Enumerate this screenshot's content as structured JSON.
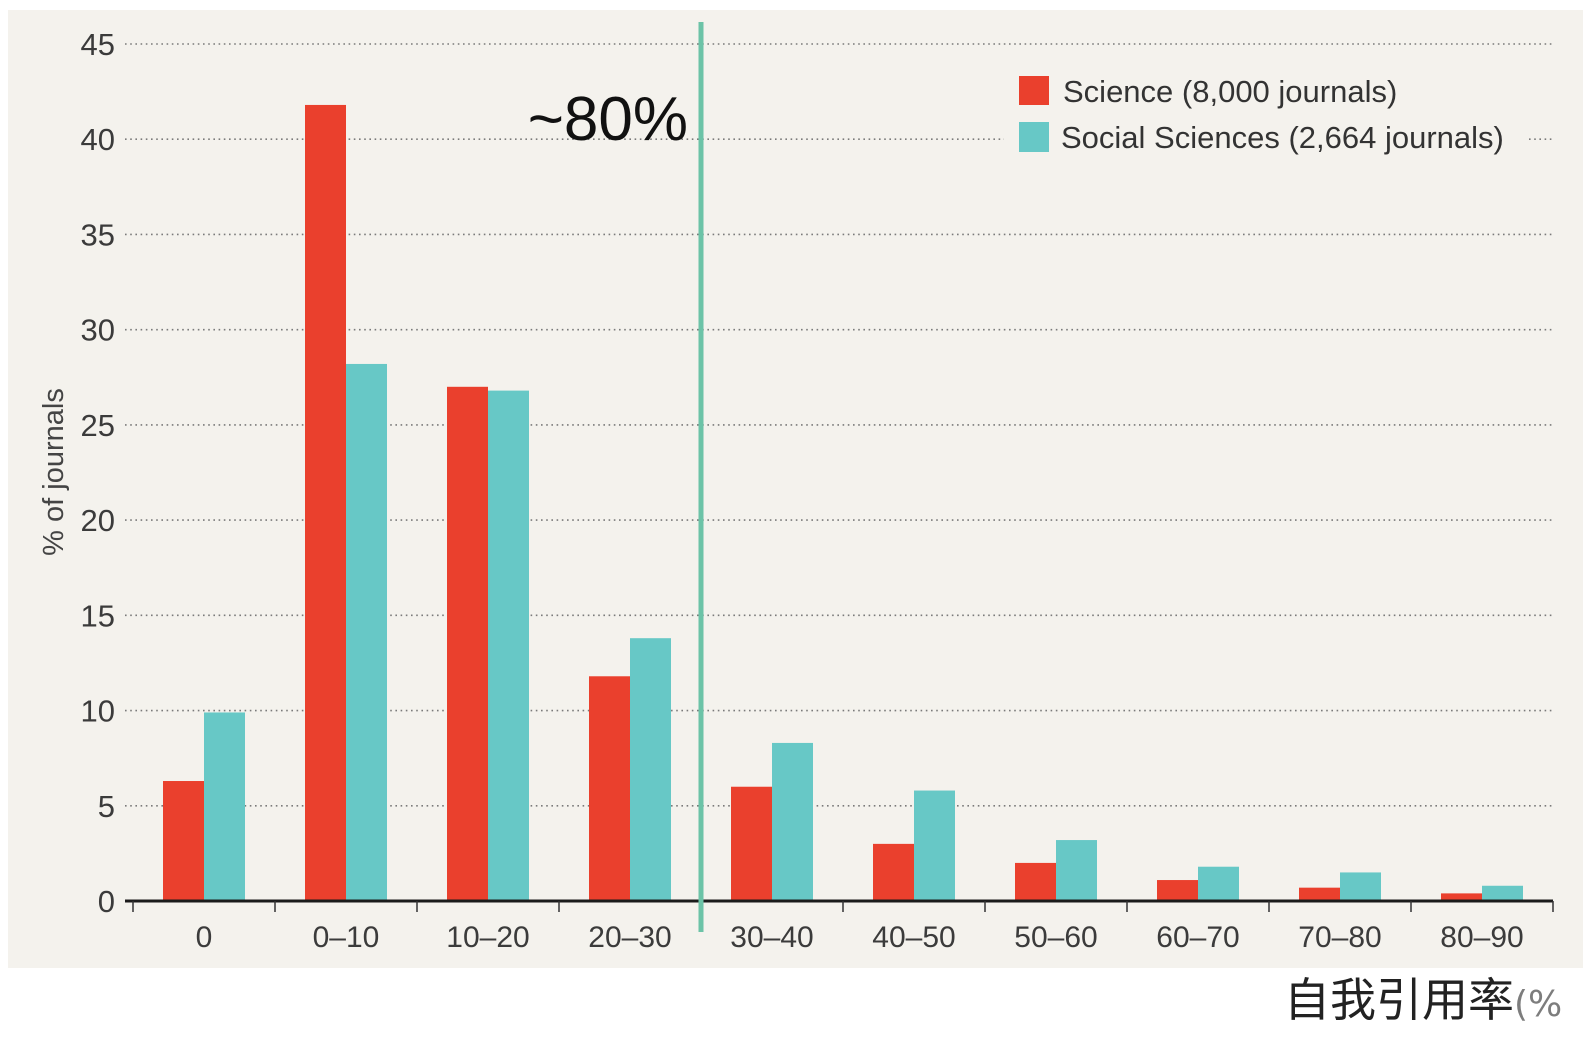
{
  "chart_data": {
    "type": "bar",
    "categories": [
      "0",
      "0–10",
      "10–20",
      "20–30",
      "30–40",
      "40–50",
      "50–60",
      "60–70",
      "70–80",
      "80–90"
    ],
    "series": [
      {
        "name": "Science (8,000 journals)",
        "color": "#ea402d",
        "values": [
          6.3,
          41.8,
          27.0,
          11.8,
          6.0,
          3.0,
          2.0,
          1.1,
          0.7,
          0.4
        ]
      },
      {
        "name": "Social Sciences (2,664 journals)",
        "color": "#67c8c6",
        "values": [
          9.9,
          28.2,
          26.8,
          13.8,
          8.3,
          5.8,
          3.2,
          1.8,
          1.5,
          0.8
        ]
      }
    ],
    "xlabel": "自我引用率(%",
    "ylabel": "% of journals",
    "ylim": [
      0,
      45
    ],
    "yticks": [
      0,
      5,
      10,
      15,
      20,
      25,
      30,
      35,
      40,
      45
    ],
    "grid": true,
    "legend": "top-right",
    "reference_line": {
      "x": 30,
      "label": "~80%",
      "color": "#6cc3a7"
    }
  }
}
